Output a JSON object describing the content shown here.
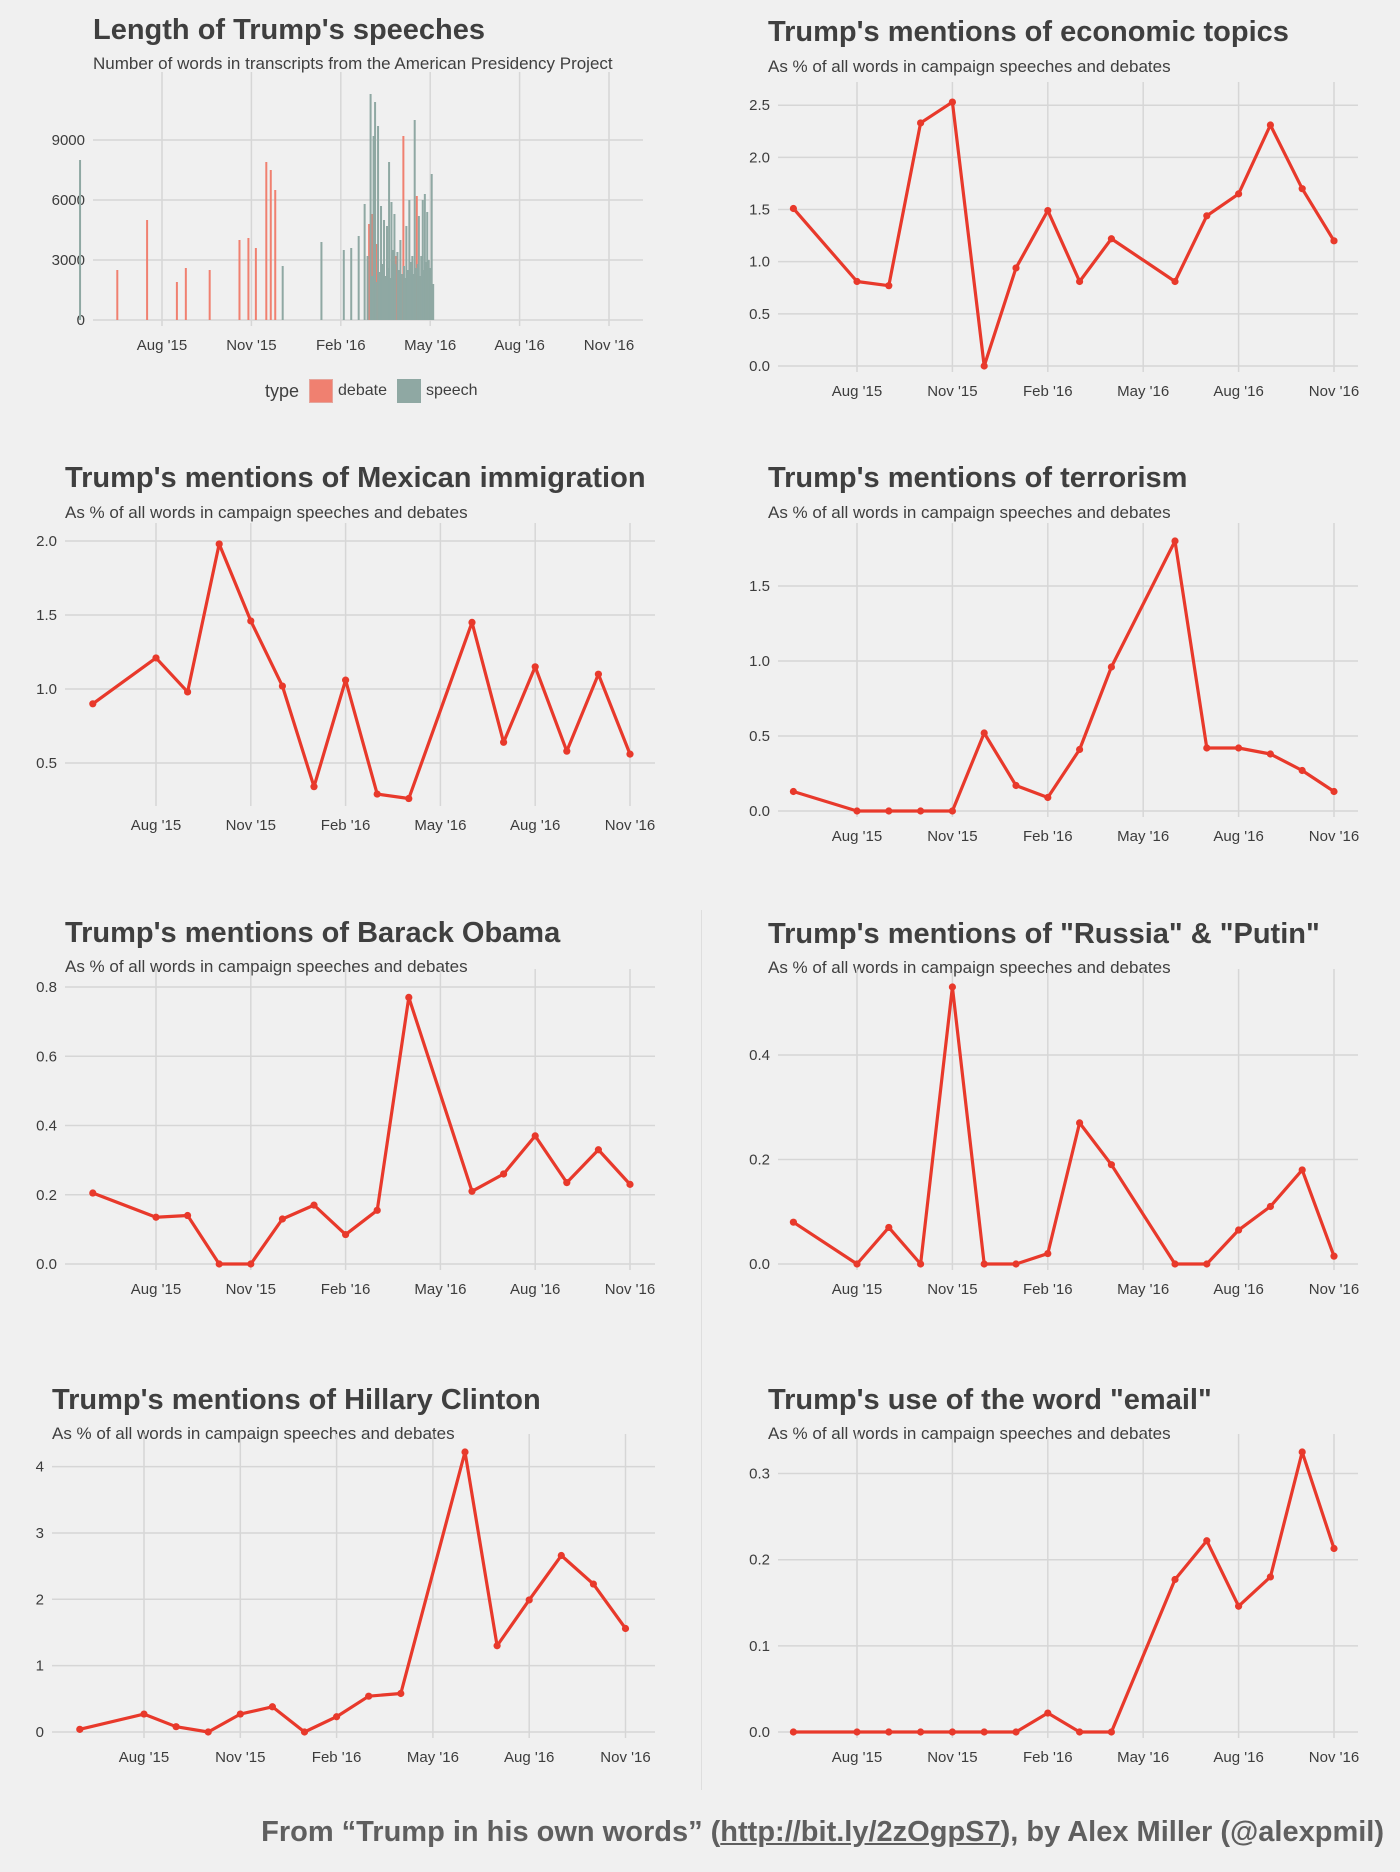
{
  "credit": {
    "prefix": "From “Trump in his own words” (",
    "link": "http://bit.ly/2zOgpS7",
    "suffix": "), by Alex Miller (@alexpmil)"
  },
  "colors": {
    "line": "#e8392b",
    "debate": "#f08070",
    "speech": "#8fa8a3",
    "grid": "#d6d6d6",
    "background": "#f0f0f0"
  },
  "chart_data": [
    {
      "id": "length",
      "type": "bar",
      "title": "Length of Trump's speeches",
      "subtitle": "Number of words in transcripts from the American Presidency Project",
      "xlabel": "",
      "ylabel": "",
      "x_ticks": [
        "Aug '15",
        "Nov '15",
        "Feb '16",
        "May '16",
        "Aug '16",
        "Nov '16"
      ],
      "y_ticks": [
        0,
        3000,
        6000,
        9000
      ],
      "ylim": [
        0,
        11500
      ],
      "grid": true,
      "legend": {
        "title": "type",
        "position": "bottom",
        "entries": [
          "debate",
          "speech"
        ]
      },
      "series": [
        {
          "name": "debate",
          "values": [
            [
              -1.5,
              2500
            ],
            [
              -0.5,
              5000
            ],
            [
              0.5,
              1900
            ],
            [
              0.8,
              2600
            ],
            [
              1.6,
              2500
            ],
            [
              2.6,
              4000
            ],
            [
              2.9,
              4100
            ],
            [
              3.15,
              3600
            ],
            [
              3.5,
              7900
            ],
            [
              3.65,
              7500
            ],
            [
              3.8,
              6500
            ],
            [
              6.95,
              4800
            ],
            [
              7.05,
              5300
            ],
            [
              7.2,
              3800
            ],
            [
              7.85,
              3200
            ],
            [
              8.1,
              9200
            ],
            [
              8.55,
              6200
            ]
          ]
        },
        {
          "name": "speech",
          "values": [
            [
              -2.75,
              8000
            ],
            [
              4.05,
              2700
            ],
            [
              5.35,
              3900
            ],
            [
              6.1,
              3500
            ],
            [
              6.35,
              3600
            ],
            [
              6.6,
              4200
            ],
            [
              6.8,
              5800
            ],
            [
              6.9,
              3200
            ],
            [
              7.0,
              11300
            ],
            [
              7.1,
              9200
            ],
            [
              7.15,
              10900
            ],
            [
              7.25,
              9700
            ],
            [
              7.35,
              5700
            ],
            [
              7.45,
              5000
            ],
            [
              7.55,
              4700
            ],
            [
              7.62,
              7900
            ],
            [
              7.7,
              5900
            ],
            [
              7.75,
              3500
            ],
            [
              7.8,
              5300
            ],
            [
              7.9,
              3400
            ],
            [
              8.0,
              4000
            ],
            [
              8.2,
              4700
            ],
            [
              8.3,
              6000
            ],
            [
              8.4,
              3200
            ],
            [
              8.48,
              10000
            ],
            [
              8.62,
              5200
            ],
            [
              8.75,
              6000
            ],
            [
              8.82,
              6300
            ],
            [
              8.9,
              5400
            ],
            [
              9.05,
              7300
            ],
            [
              9.1,
              1800
            ],
            [
              7.05,
              2200
            ],
            [
              7.18,
              1900
            ],
            [
              7.3,
              2400
            ],
            [
              7.4,
              2800
            ],
            [
              7.5,
              2200
            ],
            [
              7.58,
              2600
            ],
            [
              7.68,
              2100
            ],
            [
              7.72,
              2400
            ],
            [
              7.82,
              2800
            ],
            [
              7.95,
              2500
            ],
            [
              8.05,
              2300
            ],
            [
              8.12,
              2700
            ],
            [
              8.15,
              2100
            ],
            [
              8.25,
              2500
            ],
            [
              8.35,
              2900
            ],
            [
              8.45,
              2300
            ],
            [
              8.52,
              2600
            ],
            [
              8.58,
              2800
            ],
            [
              8.65,
              2200
            ],
            [
              8.7,
              3200
            ],
            [
              8.78,
              2500
            ],
            [
              8.85,
              2900
            ],
            [
              8.95,
              3000
            ],
            [
              9.0,
              2600
            ]
          ]
        }
      ]
    },
    {
      "id": "economic",
      "type": "line",
      "title": "Trump's mentions of economic topics",
      "subtitle": "As % of all words in campaign speeches and debates",
      "xlabel": "",
      "ylabel": "",
      "x_ticks": [
        "Aug '15",
        "Nov '15",
        "Feb '16",
        "May '16",
        "Aug '16",
        "Nov '16"
      ],
      "y_ticks": [
        0.0,
        0.5,
        1.0,
        1.5,
        2.0,
        2.5
      ],
      "ylim": [
        0,
        2.55
      ],
      "y_decimals": 1,
      "grid": true,
      "points": [
        [
          -2,
          1.51
        ],
        [
          0,
          0.81
        ],
        [
          1,
          0.77
        ],
        [
          2,
          2.33
        ],
        [
          3,
          2.53
        ],
        [
          4,
          0
        ],
        [
          5,
          0.94
        ],
        [
          6,
          1.49
        ],
        [
          7,
          0.81
        ],
        [
          8,
          1.22
        ],
        [
          10,
          0.81
        ],
        [
          11,
          1.44
        ],
        [
          12,
          1.65
        ],
        [
          13,
          2.31
        ],
        [
          14,
          1.7
        ],
        [
          15,
          1.2
        ]
      ]
    },
    {
      "id": "immigration",
      "type": "line",
      "title": "Trump's mentions of Mexican immigration",
      "subtitle": "As % of all words in campaign speeches and debates",
      "xlabel": "",
      "ylabel": "",
      "x_ticks": [
        "Aug '15",
        "Nov '15",
        "Feb '16",
        "May '16",
        "Aug '16",
        "Nov '16"
      ],
      "y_ticks": [
        0.5,
        1.0,
        1.5,
        2.0
      ],
      "ylim": [
        0.25,
        2.0
      ],
      "y_decimals": 1,
      "grid": true,
      "points": [
        [
          -2,
          0.9
        ],
        [
          0,
          1.21
        ],
        [
          1,
          0.98
        ],
        [
          2,
          1.98
        ],
        [
          3,
          1.46
        ],
        [
          4,
          1.02
        ],
        [
          5,
          0.34
        ],
        [
          6,
          1.06
        ],
        [
          7,
          0.29
        ],
        [
          8,
          0.26
        ],
        [
          10,
          1.45
        ],
        [
          11,
          0.64
        ],
        [
          12,
          1.15
        ],
        [
          13,
          0.58
        ],
        [
          14,
          1.1
        ],
        [
          15,
          0.56
        ]
      ]
    },
    {
      "id": "terrorism",
      "type": "line",
      "title": "Trump's mentions of terrorism",
      "subtitle": "As % of all words in campaign speeches and debates",
      "xlabel": "",
      "ylabel": "",
      "x_ticks": [
        "Aug '15",
        "Nov '15",
        "Feb '16",
        "May '16",
        "Aug '16",
        "Nov '16"
      ],
      "y_ticks": [
        0.0,
        0.5,
        1.0,
        1.5
      ],
      "ylim": [
        0,
        1.8
      ],
      "y_decimals": 1,
      "grid": true,
      "points": [
        [
          -2,
          0.13
        ],
        [
          0,
          0
        ],
        [
          1,
          0
        ],
        [
          2,
          0
        ],
        [
          3,
          0
        ],
        [
          4,
          0.52
        ],
        [
          5,
          0.17
        ],
        [
          6,
          0.09
        ],
        [
          7,
          0.41
        ],
        [
          8,
          0.96
        ],
        [
          10,
          1.8
        ],
        [
          11,
          0.42
        ],
        [
          12,
          0.42
        ],
        [
          13,
          0.38
        ],
        [
          14,
          0.27
        ],
        [
          15,
          0.13
        ]
      ]
    },
    {
      "id": "obama",
      "type": "line",
      "title": "Trump's mentions of Barack Obama",
      "subtitle": "As % of all words in campaign speeches and debates",
      "xlabel": "",
      "ylabel": "",
      "x_ticks": [
        "Aug '15",
        "Nov '15",
        "Feb '16",
        "May '16",
        "Aug '16",
        "Nov '16"
      ],
      "y_ticks": [
        0.0,
        0.2,
        0.4,
        0.6,
        0.8
      ],
      "ylim": [
        0,
        0.8
      ],
      "y_decimals": 1,
      "grid": true,
      "points": [
        [
          -2,
          0.205
        ],
        [
          0,
          0.135
        ],
        [
          1,
          0.14
        ],
        [
          2,
          0
        ],
        [
          3,
          0
        ],
        [
          4,
          0.13
        ],
        [
          5,
          0.17
        ],
        [
          6,
          0.085
        ],
        [
          7,
          0.155
        ],
        [
          8,
          0.77
        ],
        [
          10,
          0.21
        ],
        [
          11,
          0.26
        ],
        [
          12,
          0.37
        ],
        [
          13,
          0.235
        ],
        [
          14,
          0.33
        ],
        [
          15,
          0.23
        ]
      ]
    },
    {
      "id": "russia",
      "type": "line",
      "title": "Trump's mentions of \"Russia\" & \"Putin\"",
      "subtitle": "As % of all words in campaign speeches and debates",
      "xlabel": "",
      "ylabel": "",
      "x_ticks": [
        "Aug '15",
        "Nov '15",
        "Feb '16",
        "May '16",
        "Aug '16",
        "Nov '16"
      ],
      "y_ticks": [
        0.0,
        0.2,
        0.4
      ],
      "ylim": [
        0,
        0.53
      ],
      "y_decimals": 1,
      "grid": true,
      "points": [
        [
          -2,
          0.08
        ],
        [
          0,
          0
        ],
        [
          1,
          0.07
        ],
        [
          2,
          0
        ],
        [
          3,
          0.53
        ],
        [
          4,
          0
        ],
        [
          5,
          0
        ],
        [
          6,
          0.02
        ],
        [
          7,
          0.27
        ],
        [
          8,
          0.19
        ],
        [
          10,
          0
        ],
        [
          11,
          0
        ],
        [
          12,
          0.065
        ],
        [
          13,
          0.11
        ],
        [
          14,
          0.18
        ],
        [
          15,
          0.015
        ]
      ]
    },
    {
      "id": "clinton",
      "type": "line",
      "title": "Trump's mentions of Hillary Clinton",
      "subtitle": "As % of all words in campaign speeches and debates",
      "xlabel": "",
      "ylabel": "",
      "x_ticks": [
        "Aug '15",
        "Nov '15",
        "Feb '16",
        "May '16",
        "Aug '16",
        "Nov '16"
      ],
      "y_ticks": [
        0,
        1,
        2,
        3,
        4
      ],
      "ylim": [
        0,
        4.22
      ],
      "y_decimals": 0,
      "grid": true,
      "points": [
        [
          -2,
          0.04
        ],
        [
          0,
          0.27
        ],
        [
          1,
          0.08
        ],
        [
          2,
          0
        ],
        [
          3,
          0.27
        ],
        [
          4,
          0.38
        ],
        [
          5,
          0
        ],
        [
          6,
          0.23
        ],
        [
          7,
          0.54
        ],
        [
          8,
          0.58
        ],
        [
          10,
          4.22
        ],
        [
          11,
          1.3
        ],
        [
          12,
          1.99
        ],
        [
          13,
          2.66
        ],
        [
          14,
          2.23
        ],
        [
          15,
          1.56
        ]
      ]
    },
    {
      "id": "email",
      "type": "line",
      "title": "Trump's use of the word \"email\"",
      "subtitle": "As % of all words in campaign speeches and debates",
      "xlabel": "",
      "ylabel": "",
      "x_ticks": [
        "Aug '15",
        "Nov '15",
        "Feb '16",
        "May '16",
        "Aug '16",
        "Nov '16"
      ],
      "y_ticks": [
        0.0,
        0.1,
        0.2,
        0.3
      ],
      "ylim": [
        0,
        0.325
      ],
      "y_decimals": 1,
      "grid": true,
      "points": [
        [
          -2,
          0
        ],
        [
          0,
          0
        ],
        [
          1,
          0
        ],
        [
          2,
          0
        ],
        [
          3,
          0
        ],
        [
          4,
          0
        ],
        [
          5,
          0
        ],
        [
          6,
          0.022
        ],
        [
          7,
          0
        ],
        [
          8,
          0
        ],
        [
          10,
          0.177
        ],
        [
          11,
          0.222
        ],
        [
          12,
          0.146
        ],
        [
          13,
          0.18
        ],
        [
          14,
          0.325
        ],
        [
          15,
          0.213
        ]
      ]
    }
  ]
}
